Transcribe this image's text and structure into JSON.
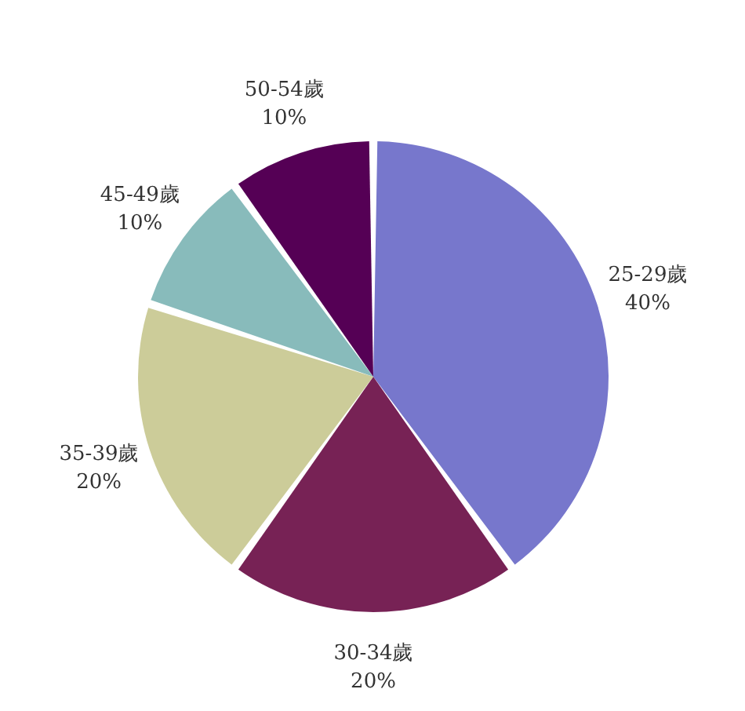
{
  "chart_data": {
    "type": "pie",
    "categories": [
      "25-29歲",
      "30-34歲",
      "35-39歲",
      "45-49歲",
      "50-54歲"
    ],
    "values": [
      40,
      20,
      20,
      10,
      10
    ],
    "colors": [
      "#7777cc",
      "#772255",
      "#cccc99",
      "#88bbbb",
      "#550055"
    ],
    "value_labels": [
      "40%",
      "20%",
      "20%",
      "10%",
      "10%"
    ],
    "legend": false
  }
}
